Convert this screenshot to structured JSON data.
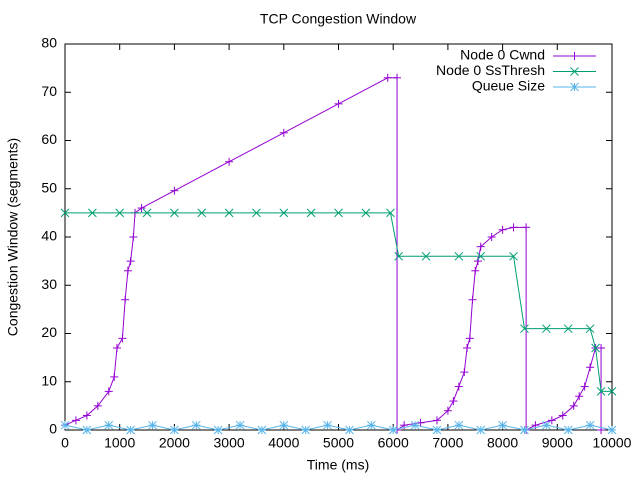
{
  "chart_data": {
    "type": "line",
    "title": "TCP Congestion Window",
    "x_label": "Time (ms)",
    "y_label": "Congestion Window (segments)",
    "xlim": [
      0,
      10000
    ],
    "ylim": [
      0,
      80
    ],
    "xticks": [
      0,
      1000,
      2000,
      3000,
      4000,
      5000,
      6000,
      7000,
      8000,
      9000,
      10000
    ],
    "yticks": [
      0,
      10,
      20,
      30,
      40,
      50,
      60,
      70,
      80
    ],
    "legend": "top-right",
    "series": [
      {
        "name": "Node 0 Cwnd",
        "color": "#9400d3",
        "marker": "plus",
        "x": [
          0,
          200,
          400,
          600,
          800,
          900,
          950,
          1050,
          1100,
          1150,
          1200,
          1250,
          1280,
          1400,
          2000,
          3000,
          4000,
          5000,
          5900,
          6070,
          6070,
          6200,
          6500,
          6800,
          7000,
          7100,
          7200,
          7300,
          7350,
          7400,
          7450,
          7500,
          7550,
          7600,
          7800,
          8000,
          8200,
          8430,
          8430,
          8600,
          8900,
          9100,
          9300,
          9400,
          9500,
          9600,
          9700,
          9800,
          9800
        ],
        "values": [
          1,
          2,
          3,
          5,
          8,
          11,
          17,
          19,
          27,
          33,
          35,
          40,
          45,
          46,
          49.6,
          55.6,
          61.6,
          67.6,
          73,
          73,
          0,
          1,
          1.5,
          2,
          4,
          6,
          9,
          12,
          17,
          19,
          27,
          33,
          35,
          38,
          40,
          41.5,
          42,
          42,
          0,
          1,
          2,
          3,
          5,
          7,
          9,
          13,
          17,
          17,
          0
        ]
      },
      {
        "name": "Node 0 SsThresh",
        "color": "#009e73",
        "marker": "cross",
        "x": [
          0,
          500,
          1000,
          1500,
          2000,
          2500,
          3000,
          3500,
          4000,
          4500,
          5000,
          5500,
          5950,
          6100,
          6600,
          7200,
          7600,
          8200,
          8400,
          8800,
          9200,
          9600,
          9700,
          9800,
          10000
        ],
        "values": [
          45,
          45,
          45,
          45,
          45,
          45,
          45,
          45,
          45,
          45,
          45,
          45,
          45,
          36,
          36,
          36,
          36,
          36,
          21,
          21,
          21,
          21,
          17,
          8,
          8
        ]
      },
      {
        "name": "Queue Size",
        "color": "#56b4e9",
        "marker": "star",
        "x": [
          0,
          400,
          800,
          1200,
          1600,
          2000,
          2400,
          2800,
          3200,
          3600,
          4000,
          4400,
          4800,
          5200,
          5600,
          6000,
          6400,
          6800,
          7200,
          7600,
          8000,
          8400,
          8800,
          9200,
          9600,
          10000
        ],
        "values": [
          1,
          0,
          1,
          0,
          1,
          0,
          1,
          0,
          1,
          0,
          1,
          0,
          1,
          0,
          1,
          0,
          1,
          0,
          1,
          0,
          1,
          0,
          1,
          0,
          1,
          0
        ]
      }
    ]
  }
}
